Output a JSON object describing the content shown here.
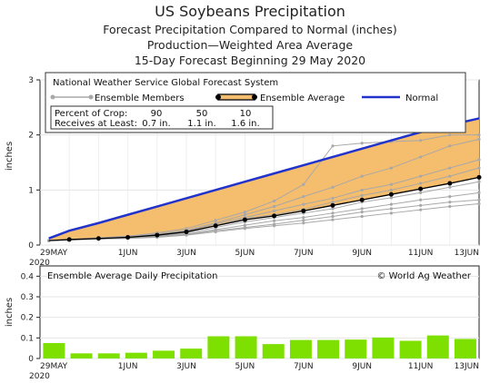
{
  "titles": {
    "line1": "US Soybeans Precipitation",
    "line2": "Forecast Precipitation Compared to Normal (inches)",
    "line3": "Production—Weighted Area Average",
    "line4": "15-Day Forecast Beginning 29 May 2020"
  },
  "colors": {
    "normal": "#2233cc",
    "ensemble_avg": "#000000",
    "members": "#a8a8a8",
    "fill": "#f5bd6e",
    "bars": "#7ee000"
  },
  "chart_data": [
    {
      "type": "line",
      "title": "National Weather Service Global Forecast System",
      "ylabel": "inches",
      "ylim": [
        0,
        3
      ],
      "yticks": [
        "0",
        "1",
        "2",
        "3"
      ],
      "xlabels": [
        {
          "i": 0,
          "label": "29MAY",
          "sub": "2020"
        },
        {
          "i": 3,
          "label": "1JUN"
        },
        {
          "i": 5,
          "label": "3JUN"
        },
        {
          "i": 7,
          "label": "5JUN"
        },
        {
          "i": 9,
          "label": "7JUN"
        },
        {
          "i": 11,
          "label": "9JUN"
        },
        {
          "i": 13,
          "label": "11JUN"
        },
        {
          "i": 15,
          "label": "13JUN"
        }
      ],
      "legend": {
        "members": "Ensemble Members",
        "average": "Ensemble Average",
        "normal": "Normal",
        "crop_header": "Percent of Crop:",
        "crop_pcts": [
          "90",
          "50",
          "10"
        ],
        "receive_header": "Receives at Least:",
        "receive_vals": [
          "0.7 in.",
          "1.1 in.",
          "1.6 in."
        ]
      },
      "x": [
        0.3,
        1,
        2,
        3,
        4,
        5,
        6,
        7,
        8,
        9,
        10,
        11,
        12,
        13,
        14,
        15
      ],
      "normal": [
        0.12,
        0.26,
        0.4,
        0.55,
        0.7,
        0.85,
        1.0,
        1.15,
        1.3,
        1.45,
        1.6,
        1.75,
        1.9,
        2.05,
        2.18,
        2.3
      ],
      "ensemble_average": [
        0.08,
        0.1,
        0.12,
        0.14,
        0.18,
        0.24,
        0.35,
        0.46,
        0.53,
        0.62,
        0.72,
        0.82,
        0.92,
        1.02,
        1.12,
        1.23
      ],
      "ensemble_members": [
        [
          0.08,
          0.1,
          0.13,
          0.16,
          0.22,
          0.3,
          0.45,
          0.6,
          0.8,
          1.1,
          1.8,
          1.85,
          1.88,
          1.9,
          2.0,
          2.0
        ],
        [
          0.08,
          0.1,
          0.13,
          0.16,
          0.2,
          0.27,
          0.4,
          0.55,
          0.7,
          0.88,
          1.05,
          1.25,
          1.4,
          1.6,
          1.8,
          1.92
        ],
        [
          0.08,
          0.1,
          0.12,
          0.15,
          0.2,
          0.26,
          0.38,
          0.5,
          0.62,
          0.74,
          0.85,
          1.0,
          1.1,
          1.25,
          1.4,
          1.55
        ],
        [
          0.08,
          0.1,
          0.12,
          0.14,
          0.18,
          0.24,
          0.35,
          0.48,
          0.55,
          0.65,
          0.78,
          0.9,
          1.0,
          1.12,
          1.25,
          1.4
        ],
        [
          0.08,
          0.1,
          0.12,
          0.14,
          0.17,
          0.22,
          0.32,
          0.42,
          0.5,
          0.58,
          0.66,
          0.78,
          0.86,
          0.95,
          1.05,
          1.15
        ],
        [
          0.08,
          0.1,
          0.11,
          0.13,
          0.16,
          0.2,
          0.28,
          0.36,
          0.44,
          0.5,
          0.58,
          0.66,
          0.74,
          0.82,
          0.88,
          0.95
        ],
        [
          0.08,
          0.1,
          0.11,
          0.13,
          0.15,
          0.19,
          0.26,
          0.32,
          0.38,
          0.45,
          0.52,
          0.6,
          0.66,
          0.72,
          0.78,
          0.82
        ],
        [
          0.08,
          0.09,
          0.11,
          0.12,
          0.14,
          0.18,
          0.24,
          0.3,
          0.35,
          0.4,
          0.46,
          0.52,
          0.58,
          0.64,
          0.7,
          0.75
        ]
      ]
    },
    {
      "type": "bar",
      "title": "Ensemble Average Daily Precipitation",
      "credit": "© World Ag Weather",
      "ylabel": "inches",
      "ylim": [
        0,
        0.45
      ],
      "yticks": [
        "0",
        "0.1",
        "0.2",
        "0.3",
        "0.4"
      ],
      "xlabels": [
        {
          "i": 0,
          "label": "29MAY",
          "sub": "2020"
        },
        {
          "i": 3,
          "label": "1JUN"
        },
        {
          "i": 5,
          "label": "3JUN"
        },
        {
          "i": 7,
          "label": "5JUN"
        },
        {
          "i": 9,
          "label": "7JUN"
        },
        {
          "i": 11,
          "label": "9JUN"
        },
        {
          "i": 13,
          "label": "11JUN"
        },
        {
          "i": 15,
          "label": "13JUN"
        }
      ],
      "values": [
        0.075,
        0.025,
        0.025,
        0.028,
        0.038,
        0.048,
        0.108,
        0.108,
        0.07,
        0.09,
        0.09,
        0.092,
        0.102,
        0.086,
        0.112,
        0.095
      ]
    }
  ]
}
